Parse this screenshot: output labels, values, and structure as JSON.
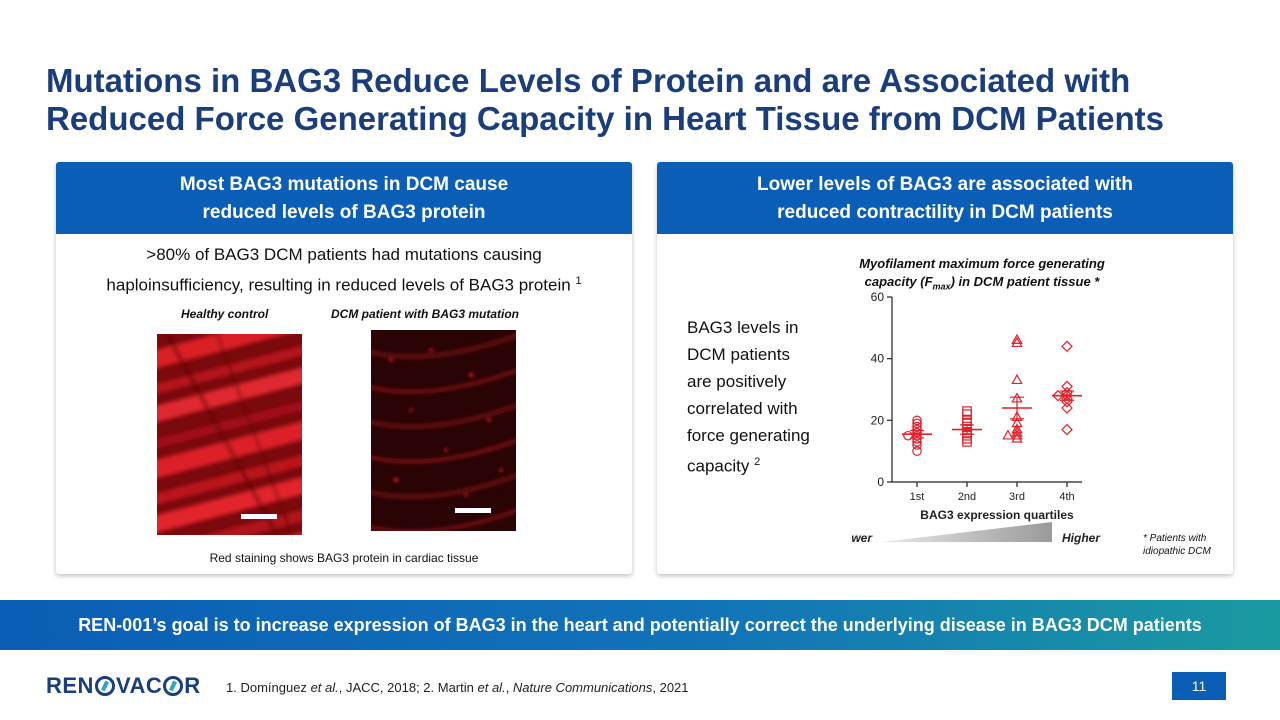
{
  "slide": {
    "title_line1": "Mutations in BAG3 Reduce Levels of Protein and are Associated with",
    "title_line2": "Reduced Force Generating Capacity in Heart Tissue from DCM Patients",
    "page_number": "11"
  },
  "left_panel": {
    "header_line1": "Most BAG3 mutations in DCM cause",
    "header_line2": "reduced levels of BAG3 protein",
    "lead_line1": ">80% of BAG3 DCM patients had mutations causing",
    "lead_line2": "haploinsufficiency, resulting in reduced levels of BAG3 protein",
    "lead_ref": "1",
    "image_caption_left": "Healthy control",
    "image_caption_right": "DCM patient with BAG3 mutation",
    "footer": "Red staining shows BAG3 protein in cardiac tissue"
  },
  "right_panel": {
    "header_line1": "Lower levels of BAG3 are associated with",
    "header_line2": "reduced contractility in DCM patients",
    "body_lines": [
      "BAG3 levels in",
      "DCM patients",
      "are positively",
      "correlated with",
      "force generating",
      "capacity"
    ],
    "body_ref": "2",
    "chart_title_line1": "Myofilament maximum force generating",
    "chart_title_line2_pre": "capacity (F",
    "chart_title_sub": "max",
    "chart_title_line2_post": ") in DCM patient tissue *",
    "footnote_line1": "* Patients with",
    "footnote_line2": "idiopathic DCM"
  },
  "chart_data": {
    "type": "scatter",
    "xlabel": "BAG3 expression quartiles",
    "ylabel": "",
    "categories": [
      "1st",
      "2nd",
      "3rd",
      "4th"
    ],
    "ylim": [
      0,
      60
    ],
    "yticks": [
      0,
      20,
      40,
      60
    ],
    "gradient_low_label": "Lower",
    "gradient_high_label": "Higher",
    "marker_color": "#e0202a",
    "series": [
      {
        "category": "1st",
        "marker": "circle",
        "mean": 15.5,
        "sem": 1.2,
        "values": [
          10,
          12,
          13,
          14,
          15,
          15,
          16,
          17,
          18,
          19,
          20
        ]
      },
      {
        "category": "2nd",
        "marker": "square",
        "mean": 17,
        "sem": 1.5,
        "values": [
          13,
          14,
          15,
          16,
          17,
          18,
          19,
          20,
          22,
          23
        ]
      },
      {
        "category": "3rd",
        "marker": "triangle",
        "mean": 24,
        "sem": 3.5,
        "values": [
          14,
          15,
          15,
          16,
          17,
          19,
          21,
          27,
          33,
          45,
          46
        ]
      },
      {
        "category": "4th",
        "marker": "diamond",
        "mean": 28,
        "sem": 1.5,
        "values": [
          17,
          24,
          26,
          27,
          28,
          28,
          29,
          31,
          44
        ]
      }
    ]
  },
  "goal": {
    "text": "REN-001’s goal is to increase expression of BAG3 in the heart and potentially correct the underlying disease in BAG3 DCM patients"
  },
  "footer": {
    "logo_text_pre": "REN",
    "logo_text_post": "VAC",
    "logo_text_end": "R",
    "ref1_authors": "1. Domínguez",
    "ref_etal": "et al.",
    "ref1_journal": ", JACC, 2018; 2. Martin",
    "ref2_journal": "Nature Communications",
    "ref2_year": ", 2021"
  }
}
